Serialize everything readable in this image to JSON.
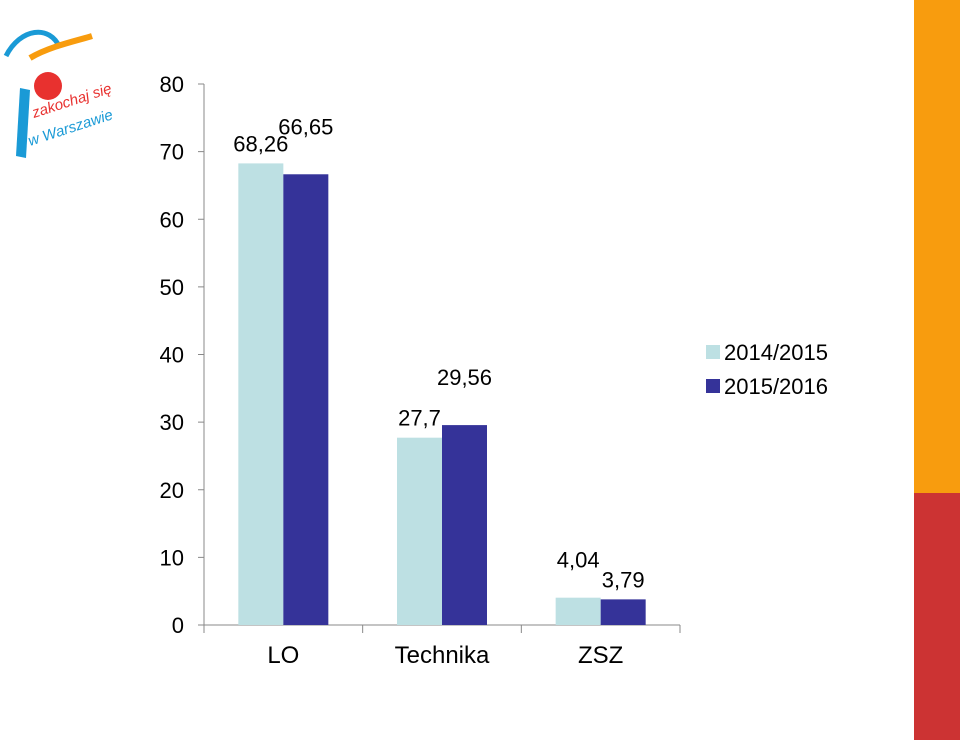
{
  "logo": {
    "text_line1": "zakochaj się",
    "text_line2": "w Warszawie",
    "colors": {
      "blue": "#1a9ad6",
      "orange": "#f89c0e",
      "red": "#e8312f"
    }
  },
  "side_stripe": {
    "top_color": "#f89c0e",
    "bottom_color": "#cc3333"
  },
  "chart_data": {
    "type": "bar",
    "title": "",
    "xlabel": "",
    "ylabel": "",
    "categories": [
      "LO",
      "Technika",
      "ZSZ"
    ],
    "series": [
      {
        "name": "2014/2015",
        "color": "#bde0e3",
        "values": [
          68.26,
          27.7,
          4.04
        ],
        "labels": [
          "68,26",
          "27,7",
          "4,04"
        ]
      },
      {
        "name": "2015/2016",
        "color": "#353399",
        "values": [
          66.65,
          29.56,
          3.79
        ],
        "labels": [
          "66,65",
          "29,56",
          "3,79"
        ]
      }
    ],
    "ylim": [
      0,
      80
    ],
    "yticks": [
      0,
      10,
      20,
      30,
      40,
      50,
      60,
      70,
      80
    ],
    "ytick_labels": [
      "0",
      "10",
      "20",
      "30",
      "40",
      "50",
      "60",
      "70",
      "80"
    ],
    "grid": false,
    "legend_position": "right"
  }
}
